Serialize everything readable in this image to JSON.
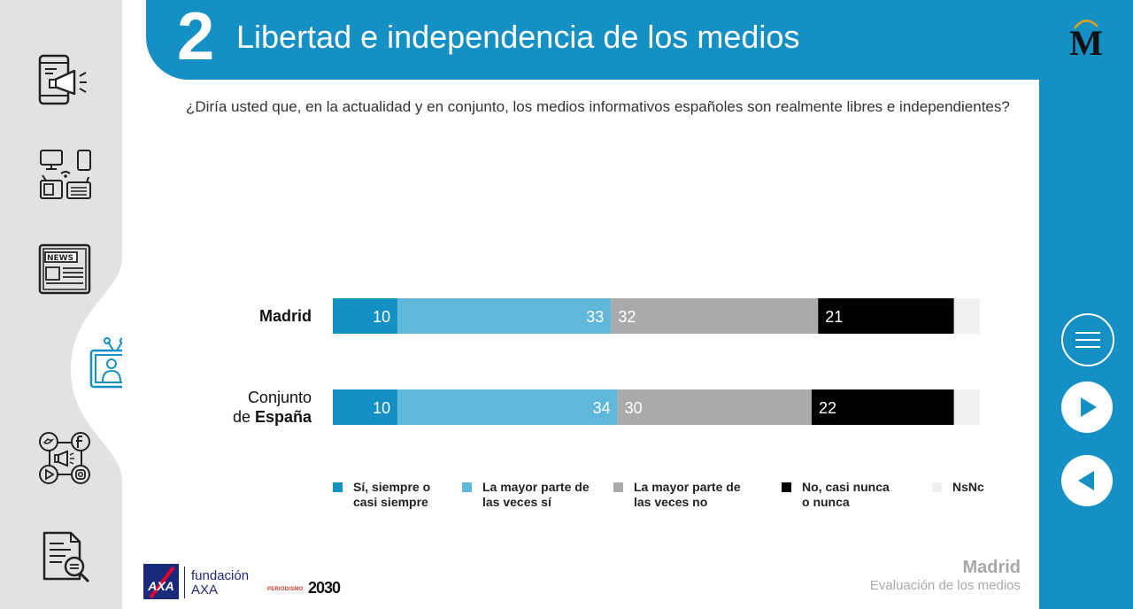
{
  "header": {
    "section_number": "2",
    "title": "Libertad e independencia de los medios",
    "logo_letter": "M"
  },
  "question": "¿Diría usted que, en la actualidad y en conjunto, los medios informativos españoles son realmente libres e independientes?",
  "chart_data": {
    "type": "bar",
    "orientation": "horizontal",
    "stacked": true,
    "normalized_percent": true,
    "categories": [
      {
        "parts": [
          {
            "text": "Madrid",
            "bold": true
          }
        ]
      },
      {
        "parts": [
          {
            "text": "Conjunto",
            "bold": false
          },
          {
            "text": "de ",
            "bold": false
          },
          {
            "text": "España",
            "bold": true
          }
        ]
      }
    ],
    "series": [
      {
        "name": "Sí, siempre o casi siempre",
        "legend_lines": [
          "Sí, siempre o",
          "casi siempre"
        ],
        "color": "#1590c4",
        "values": [
          10,
          10
        ],
        "label_align": "end"
      },
      {
        "name": "La mayor parte de las veces sí",
        "legend_lines": [
          "La mayor parte de",
          "las veces sí"
        ],
        "color": "#5fb7d9",
        "values": [
          33,
          34
        ],
        "label_align": "end"
      },
      {
        "name": "La mayor parte de las veces no",
        "legend_lines": [
          "La mayor parte de",
          "las veces no"
        ],
        "color": "#aaaaaa",
        "values": [
          32,
          30
        ],
        "label_align": "start"
      },
      {
        "name": "No, casi nunca o nunca",
        "legend_lines": [
          "No, casi nunca",
          "o nunca"
        ],
        "color": "#000000",
        "values": [
          21,
          22
        ],
        "label_align": "start"
      },
      {
        "name": "NsNc",
        "legend_lines": [
          "NsNc"
        ],
        "color": "#f0f0f0",
        "values": [
          4,
          4
        ],
        "label_align": "none"
      }
    ],
    "xlim": [
      0,
      100
    ],
    "grid": false,
    "legend_position": "bottom"
  },
  "sidebar": {
    "items": [
      {
        "icon": "mobile-megaphone-icon"
      },
      {
        "icon": "devices-network-icon"
      },
      {
        "icon": "newspaper-icon"
      },
      {
        "icon": "tv-presenter-icon",
        "active": true
      },
      {
        "icon": "social-media-icon"
      },
      {
        "icon": "document-search-icon"
      }
    ]
  },
  "footer": {
    "region": "Madrid",
    "section": "Evaluación de los medios",
    "fundacion_line1": "fundación",
    "fundacion_line2": "AXA",
    "axa_text": "AXA",
    "periodismo_small": "PERIODISMO",
    "periodismo_year": "2030"
  },
  "colors": {
    "brand_blue": "#1590c4",
    "sidebar_gray": "#e2e2e2",
    "axa_navy": "#1a2a7a",
    "axa_red": "#e4032e"
  }
}
